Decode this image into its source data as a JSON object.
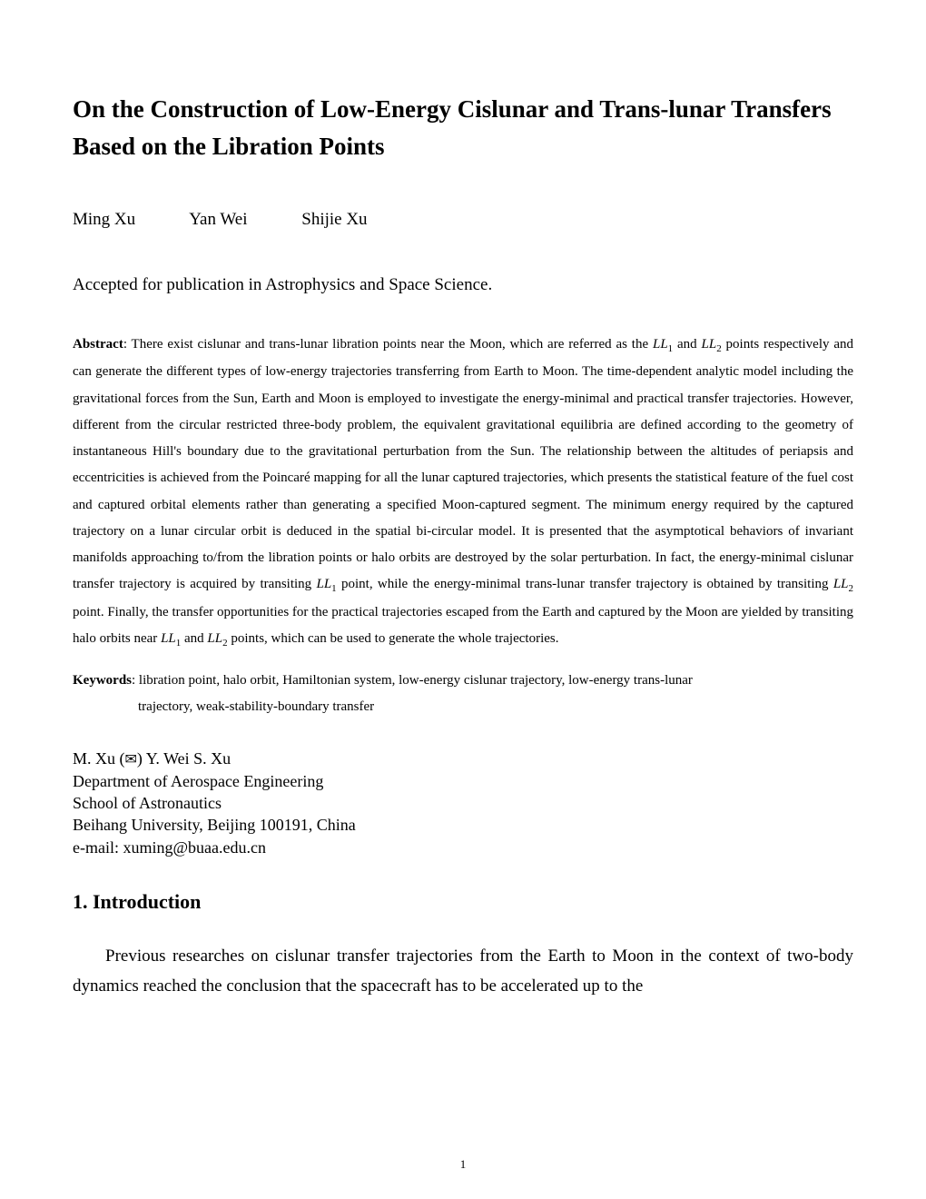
{
  "title": "On the Construction of Low-Energy Cislunar and Trans-lunar Transfers Based on the Libration Points",
  "authors": {
    "a1": "Ming Xu",
    "a2": "Yan Wei",
    "a3": "Shijie Xu"
  },
  "acceptance": "Accepted for publication in Astrophysics and Space Science.",
  "abstract": {
    "label": "Abstract",
    "p1": ": There exist cislunar and trans-lunar libration points near the Moon, which are referred as the ",
    "ll1": "LL",
    "sub1": "1",
    "p2": " and ",
    "ll2": "LL",
    "sub2": "2",
    "p3": " points respectively and can generate the different types of low-energy trajectories transferring from Earth to Moon. The time-dependent analytic model including the gravitational forces from the Sun, Earth and Moon is employed to investigate the energy-minimal and practical transfer trajectories. However, different from the circular restricted three-body problem, the equivalent gravitational equilibria are defined according to the geometry of instantaneous Hill's boundary due to the gravitational perturbation from the Sun. The relationship between the altitudes of periapsis and eccentricities is achieved from the Poincaré mapping for all the lunar captured trajectories, which presents the statistical feature of the fuel cost and captured orbital elements rather than generating a specified Moon-captured segment. The minimum energy required by the captured trajectory on a lunar circular orbit is deduced in the spatial bi-circular model. It is presented that the asymptotical behaviors of invariant manifolds approaching to/from the libration points or halo orbits are destroyed by the solar perturbation. In fact, the energy-minimal cislunar transfer trajectory is acquired by transiting ",
    "ll3": "LL",
    "sub3": "1",
    "p4": " point, while the energy-minimal trans-lunar transfer trajectory is obtained by transiting ",
    "ll4": "LL",
    "sub4": "2",
    "p5": " point. Finally, the transfer opportunities for the practical trajectories escaped from the Earth and captured by the Moon are yielded by transiting halo orbits near ",
    "ll5": "LL",
    "sub5": "1",
    "p6": " and ",
    "ll6": "LL",
    "sub6": "2",
    "p7": " points, which can be used to generate the whole trajectories."
  },
  "keywords": {
    "label": "Keywords",
    "line1": ": libration point, halo orbit, Hamiltonian system, low-energy cislunar trajectory, low-energy trans-lunar",
    "line2": "trajectory, weak-stability-boundary transfer"
  },
  "affiliation": {
    "line1a": "M. Xu (",
    "envelope": "✉",
    "line1b": ")      Y. Wei      S. Xu",
    "line2": "Department of Aerospace Engineering",
    "line3": "School of Astronautics",
    "line4": "Beihang University, Beijing 100191, China",
    "line5": "e-mail: xuming@buaa.edu.cn"
  },
  "section1": {
    "heading": "1. Introduction",
    "text": "Previous researches on cislunar transfer trajectories from the Earth to Moon in the context of two-body dynamics reached the conclusion that the spacecraft has to be accelerated up to the"
  },
  "pageNumber": "1"
}
